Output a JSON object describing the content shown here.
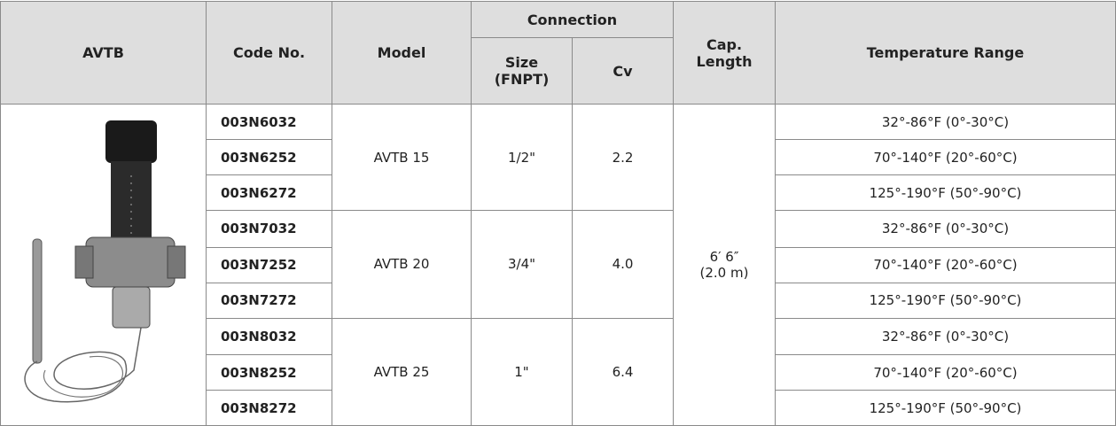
{
  "header": {
    "avtb": "AVTB",
    "code_no": "Code No.",
    "model": "Model",
    "connection": "Connection",
    "size": "Size\n(FNPT)",
    "cv": "Cv",
    "cap_length": "Cap.\nLength",
    "temperature_range": "Temperature Range"
  },
  "cap_length": "6′ 6″\n(2.0 m)",
  "groups": [
    {
      "model": "AVTB 15",
      "size": "1/2\"",
      "cv": "2.2",
      "rows": [
        {
          "code": "003N6032",
          "range": "32°-86°F (0°-30°C)"
        },
        {
          "code": "003N6252",
          "range": "70°-140°F (20°-60°C)"
        },
        {
          "code": "003N6272",
          "range": "125°-190°F (50°-90°C)"
        }
      ]
    },
    {
      "model": "AVTB 20",
      "size": "3/4\"",
      "cv": "4.0",
      "rows": [
        {
          "code": "003N7032",
          "range": "32°-86°F (0°-30°C)"
        },
        {
          "code": "003N7252",
          "range": "70°-140°F (20°-60°C)"
        },
        {
          "code": "003N7272",
          "range": "125°-190°F (50°-90°C)"
        }
      ]
    },
    {
      "model": "AVTB 25",
      "size": "1\"",
      "cv": "6.4",
      "rows": [
        {
          "code": "003N8032",
          "range": "32°-86°F (0°-30°C)"
        },
        {
          "code": "003N8252",
          "range": "70°-140°F (20°-60°C)"
        },
        {
          "code": "003N8272",
          "range": "125°-190°F (50°-90°C)"
        }
      ]
    }
  ]
}
